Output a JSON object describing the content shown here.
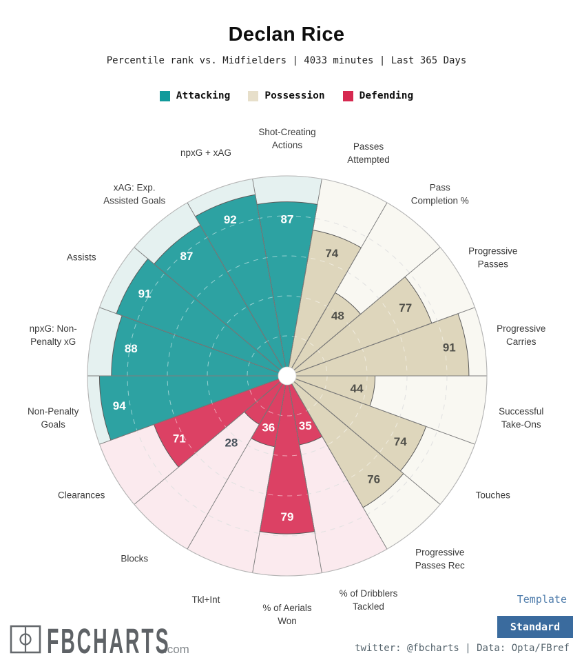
{
  "header": {
    "title": "Declan Rice",
    "subtitle": "Percentile rank vs. Midfielders | 4033 minutes | Last 365 Days"
  },
  "legend": {
    "items": [
      {
        "label": "Attacking",
        "color": "#119a9b"
      },
      {
        "label": "Possession",
        "color": "#e7dfca"
      },
      {
        "label": "Defending",
        "color": "#d62950"
      }
    ]
  },
  "chart_data": {
    "type": "pizza",
    "max": 100,
    "rings_dashed": [
      20,
      40,
      60,
      80
    ],
    "groups": {
      "attacking": {
        "fill": "#2da2a2",
        "bg": "#e5f1f0",
        "value_text": "#ffffff"
      },
      "possession": {
        "fill": "#ded6bc",
        "bg": "#f9f8f2",
        "value_text": "#50504a"
      },
      "defending": {
        "fill": "#dc4164",
        "bg": "#fbeaee",
        "value_text": "#ffffff"
      }
    },
    "outside_label_color": "#46505a",
    "slices": [
      {
        "param": "Shot-Creating Actions",
        "lines": [
          "Shot-Creating",
          "Actions"
        ],
        "value": 87,
        "group": "attacking"
      },
      {
        "param": "Passes Attempted",
        "lines": [
          "Passes",
          "Attempted"
        ],
        "value": 74,
        "group": "possession"
      },
      {
        "param": "Pass Completion %",
        "lines": [
          "Pass",
          "Completion %"
        ],
        "value": 48,
        "group": "possession"
      },
      {
        "param": "Progressive Passes",
        "lines": [
          "Progressive",
          "Passes"
        ],
        "value": 77,
        "group": "possession"
      },
      {
        "param": "Progressive Carries",
        "lines": [
          "Progressive",
          "Carries"
        ],
        "value": 91,
        "group": "possession"
      },
      {
        "param": "Successful Take-Ons",
        "lines": [
          "Successful",
          "Take-Ons"
        ],
        "value": 44,
        "group": "possession"
      },
      {
        "param": "Touches",
        "lines": [
          "Touches"
        ],
        "value": 74,
        "group": "possession"
      },
      {
        "param": "Progressive Passes Rec",
        "lines": [
          "Progressive",
          "Passes Rec"
        ],
        "value": 76,
        "group": "possession"
      },
      {
        "param": "% of Dribblers Tackled",
        "lines": [
          "% of Dribblers",
          "Tackled"
        ],
        "value": 35,
        "group": "defending"
      },
      {
        "param": "% of Aerials Won",
        "lines": [
          "% of Aerials",
          "Won"
        ],
        "value": 79,
        "group": "defending"
      },
      {
        "param": "Tkl+Int",
        "lines": [
          "Tkl+Int"
        ],
        "value": 36,
        "group": "defending"
      },
      {
        "param": "Blocks",
        "lines": [
          "Blocks"
        ],
        "value": 28,
        "group": "defending",
        "label_outside": true
      },
      {
        "param": "Clearances",
        "lines": [
          "Clearances"
        ],
        "value": 71,
        "group": "defending"
      },
      {
        "param": "Non-Penalty Goals",
        "lines": [
          "Non-Penalty",
          "Goals"
        ],
        "value": 94,
        "group": "attacking"
      },
      {
        "param": "npxG: Non-Penalty xG",
        "lines": [
          "npxG: Non-",
          "Penalty xG"
        ],
        "value": 88,
        "group": "attacking"
      },
      {
        "param": "Assists",
        "lines": [
          "Assists"
        ],
        "value": 91,
        "group": "attacking"
      },
      {
        "param": "xAG: Exp. Assisted Goals",
        "lines": [
          "xAG: Exp.",
          "Assisted Goals"
        ],
        "value": 87,
        "group": "attacking"
      },
      {
        "param": "npxG + xAG",
        "lines": [
          "npxG + xAG"
        ],
        "value": 92,
        "group": "attacking"
      }
    ]
  },
  "footer": {
    "logo_text": "FBCHARTS",
    "logo_suffix": ".com",
    "template_label": "Template",
    "template_value": "Standard",
    "credits": "twitter: @fbcharts | Data: Opta/FBref"
  }
}
